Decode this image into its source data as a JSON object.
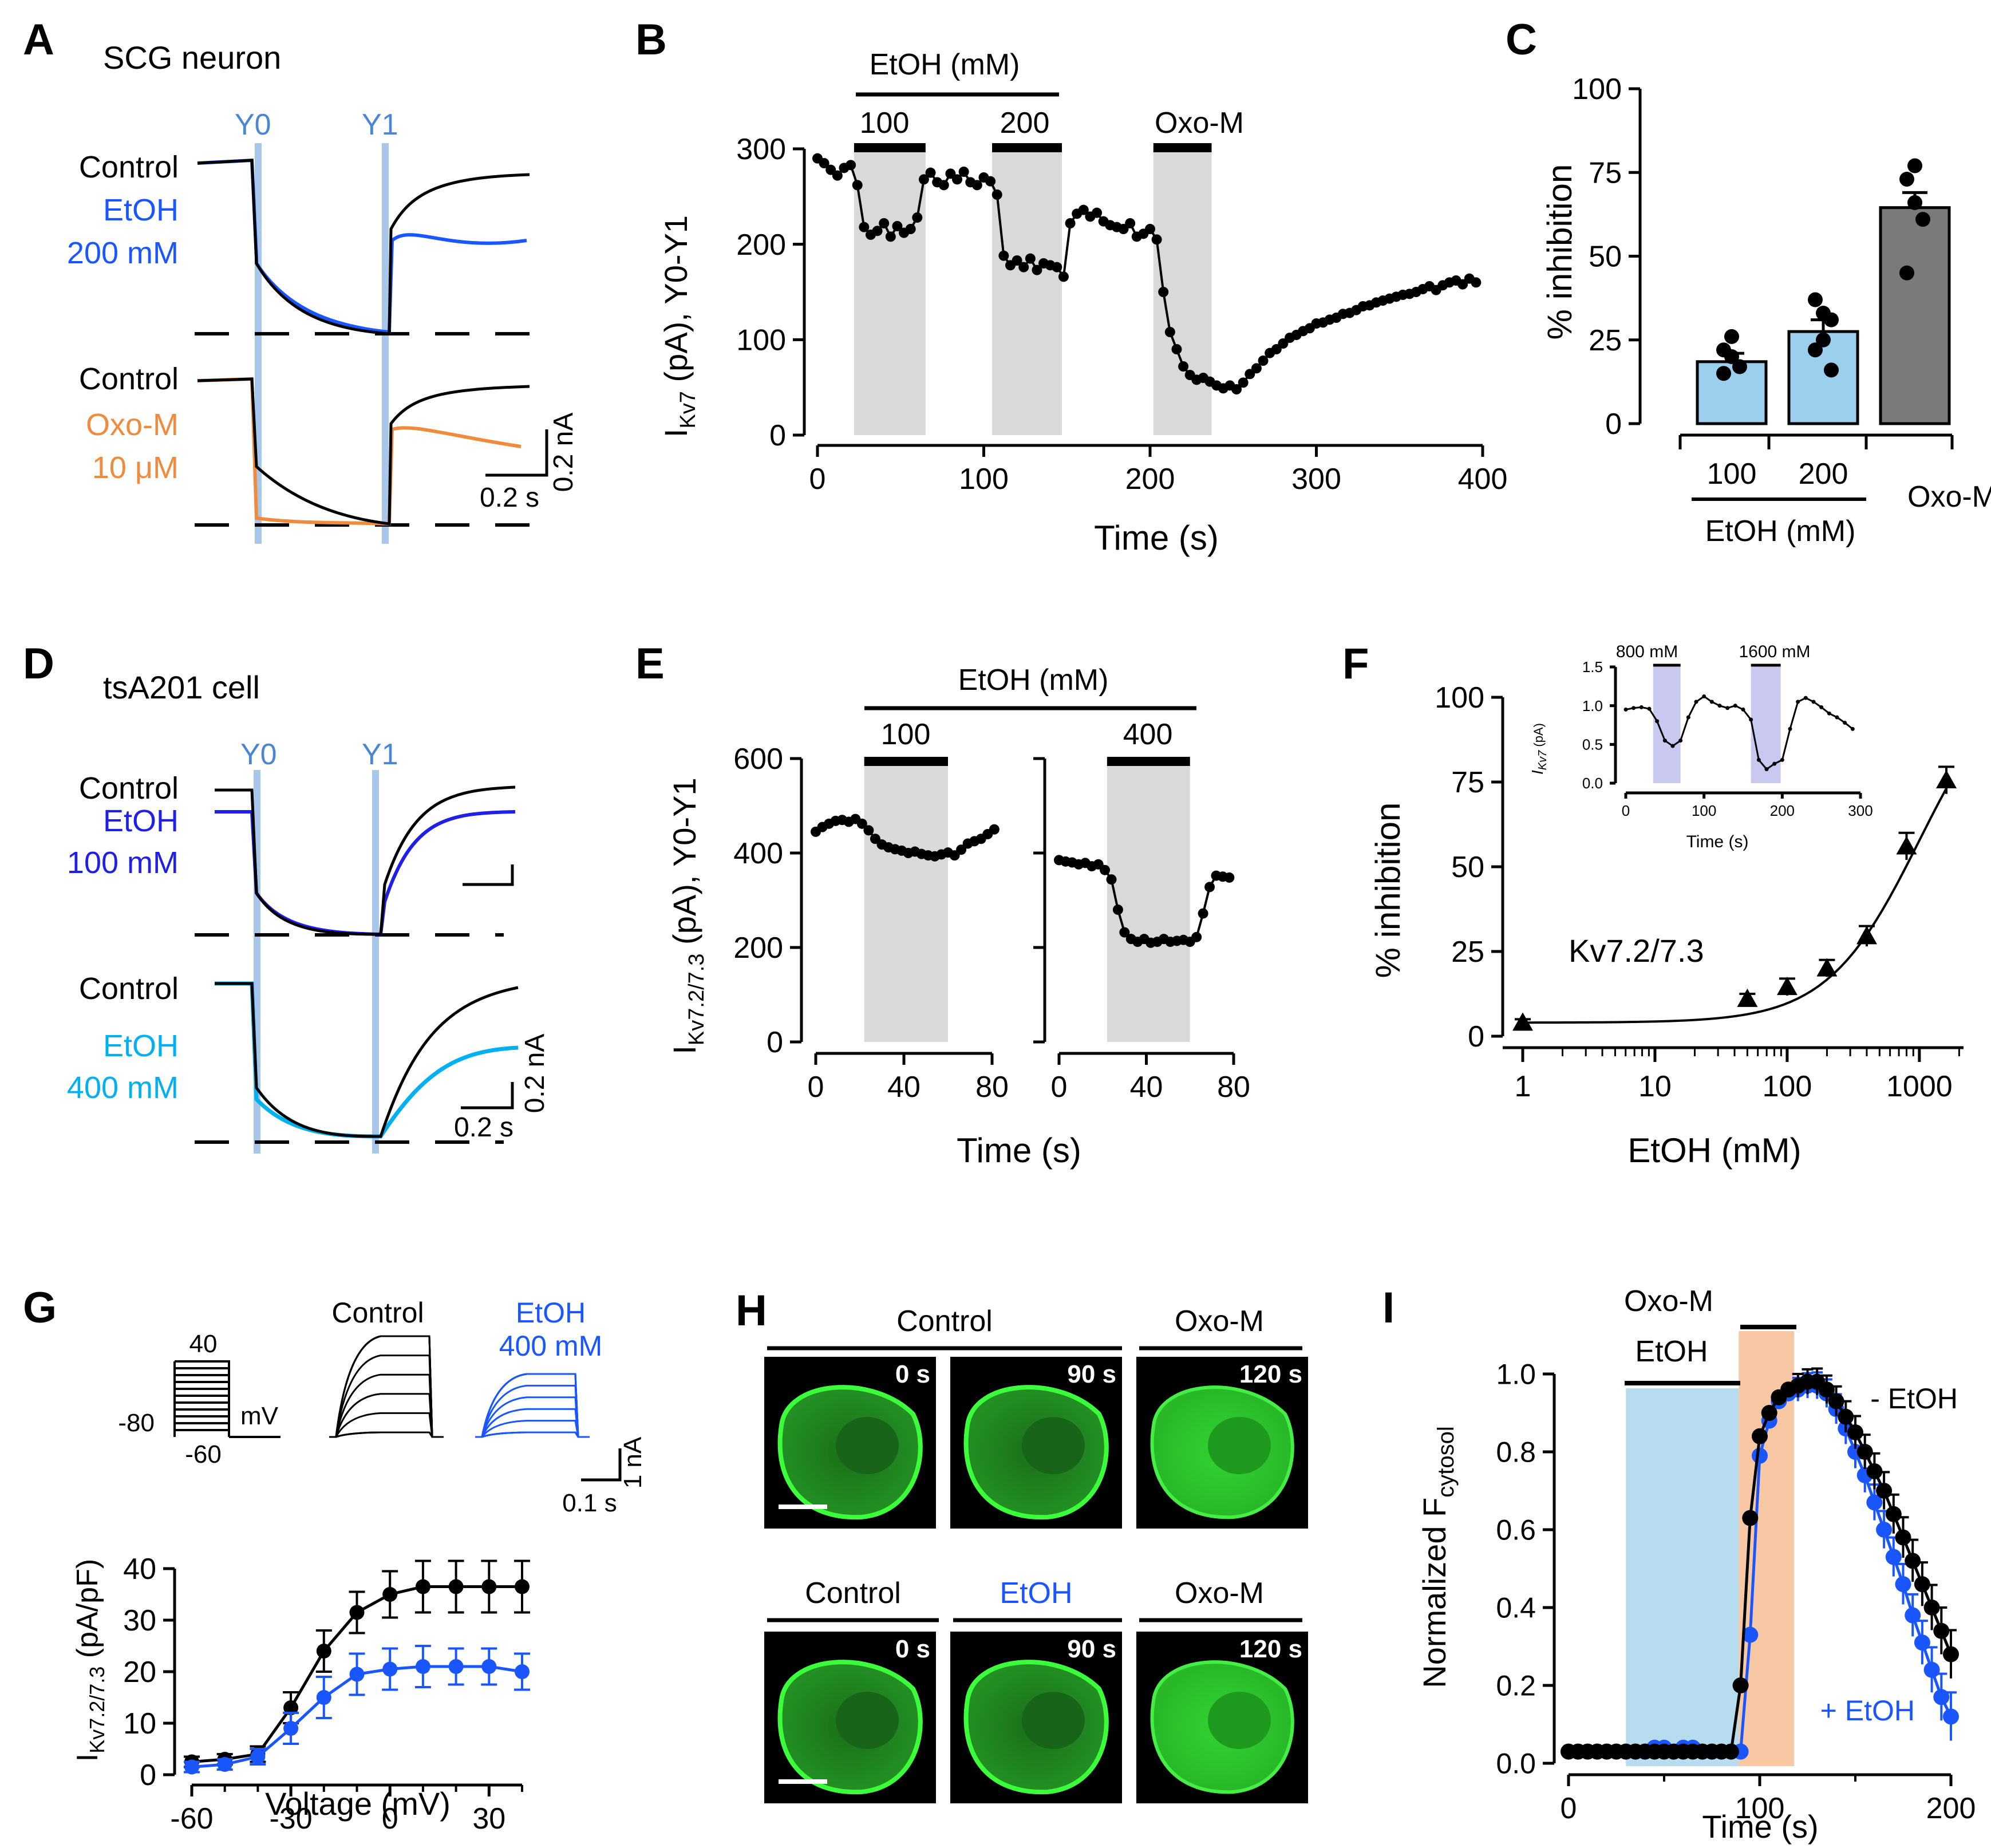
{
  "colors": {
    "black": "#000000",
    "blue": "#1f1fe8",
    "bright_blue": "#1a56ff",
    "light_blue": "#00b0f0",
    "orange": "#f08a3c",
    "cursor_blue": "#a6c6ea",
    "label_blue": "#4a86d4",
    "shade_gray": "#d9d9d9",
    "bar_blue": "#9ccfee",
    "bar_gray": "#7a7a7a",
    "etoh_shade": "#b7dcf0",
    "oxo_shade": "#f8c8a4",
    "inset_shade": "#c8c8f0",
    "cell_green": "#22d022"
  },
  "panelA": {
    "letter": "A",
    "title": "SCG neuron",
    "y0": "Y0",
    "y1": "Y1",
    "top_labels": [
      "Control",
      "EtOH",
      "200 mM"
    ],
    "bottom_labels": [
      "Control",
      "Oxo-M",
      "10 μM"
    ],
    "scale_y": "0.2 nA",
    "scale_x": "0.2 s"
  },
  "panelB": {
    "letter": "B",
    "drug_header": "EtOH  (mM)",
    "applications": [
      "100",
      "200",
      "Oxo-M"
    ],
    "ylabel_main": "I",
    "ylabel_sub": "Kv7",
    "ylabel_tail": " (pA),  Y0-Y1",
    "xlabel": "Time (s)",
    "xticks": [
      "0",
      "100",
      "200",
      "300",
      "400"
    ],
    "yticks": [
      "0",
      "100",
      "200",
      "300"
    ]
  },
  "panelC": {
    "letter": "C",
    "ylabel": "% inhibition",
    "yticks": [
      "0",
      "25",
      "50",
      "75",
      "100"
    ],
    "categories": [
      "100",
      "200",
      "Oxo-M"
    ],
    "group_label": "EtOH  (mM)"
  },
  "panelD": {
    "letter": "D",
    "title": "tsA201 cell",
    "y0": "Y0",
    "y1": "Y1",
    "top_labels": [
      "Control",
      "EtOH",
      "100 mM"
    ],
    "bottom_labels": [
      "Control",
      "EtOH",
      "400 mM"
    ],
    "scale_y": "0.2 nA",
    "scale_x": "0.2 s"
  },
  "panelE": {
    "letter": "E",
    "drug_header": "EtOH  (mM)",
    "applications": [
      "100",
      "400"
    ],
    "ylabel_main": "I",
    "ylabel_sub": "Kv7.2/7.3",
    "ylabel_tail": " (pA),  Y0-Y1",
    "xlabel": "Time (s)",
    "xticks": [
      "0",
      "40",
      "80"
    ],
    "yticks": [
      "0",
      "200",
      "400",
      "600"
    ]
  },
  "panelF": {
    "letter": "F",
    "ylabel": "% inhibition",
    "xlabel": "EtOH (mM)",
    "annotation": "Kv7.2/7.3",
    "xticks": [
      "1",
      "10",
      "100",
      "1000"
    ],
    "yticks": [
      "0",
      "25",
      "50",
      "75",
      "100"
    ],
    "inset": {
      "labels": [
        "800  mM",
        "1600  mM"
      ],
      "ylabel_main": "I",
      "ylabel_sub": "Kv7",
      "ylabel_tail": " (pA)",
      "xlabel": "Time (s)",
      "xticks": [
        "0",
        "100",
        "200",
        "300"
      ],
      "yticks": [
        "0.0",
        "0.5",
        "1.0",
        "1.5"
      ]
    }
  },
  "panelG": {
    "letter": "G",
    "protocol": [
      "40",
      "-80",
      "-60",
      "mV"
    ],
    "trace_labels": [
      "Control",
      "EtOH",
      "400 mM"
    ],
    "scale_y": "1 nA",
    "scale_x": "0.1 s",
    "ylabel_main": "I",
    "ylabel_sub": "Kv7.2/7.3",
    "ylabel_tail": " (pA/pF)",
    "xlabel": "Voltage  (mV)",
    "xticks": [
      "-60",
      "-30",
      "0",
      "30"
    ],
    "yticks": [
      "0",
      "10",
      "20",
      "30",
      "40"
    ]
  },
  "panelH": {
    "letter": "H",
    "row1_headers": [
      "Control",
      "Oxo-M"
    ],
    "row2_headers": [
      "Control",
      "EtOH",
      "Oxo-M"
    ],
    "timestamps": [
      "0 s",
      "90 s",
      "120 s"
    ]
  },
  "panelI": {
    "letter": "I",
    "shade_labels": [
      "EtOH",
      "Oxo-M"
    ],
    "ylabel_main": "Normalized    F",
    "ylabel_sub": "cytosol",
    "xlabel": "Time  (s)",
    "xticks": [
      "0",
      "100",
      "200"
    ],
    "yticks": [
      "0.0",
      "0.2",
      "0.4",
      "0.6",
      "0.8",
      "1.0"
    ],
    "series_labels": [
      "- EtOH",
      "+ EtOH"
    ]
  },
  "chart_data": [
    {
      "panel": "B",
      "type": "scatter",
      "title": "",
      "xlabel": "Time (s)",
      "ylabel": "IKv7 (pA), Y0-Y1",
      "xlim": [
        0,
        400
      ],
      "ylim": [
        0,
        300
      ],
      "shaded_intervals": [
        [
          22,
          65
        ],
        [
          105,
          147
        ],
        [
          202,
          237
        ]
      ],
      "x": [
        0,
        4,
        8,
        12,
        16,
        20,
        24,
        28,
        32,
        36,
        40,
        44,
        48,
        52,
        56,
        60,
        64,
        68,
        72,
        76,
        80,
        84,
        88,
        92,
        96,
        100,
        104,
        108,
        112,
        116,
        120,
        124,
        128,
        132,
        136,
        140,
        144,
        148,
        152,
        156,
        160,
        164,
        168,
        172,
        176,
        180,
        184,
        188,
        192,
        196,
        200,
        204,
        208,
        212,
        216,
        220,
        224,
        228,
        232,
        236,
        240,
        244,
        248,
        252,
        256,
        260,
        264,
        268,
        272,
        276,
        280,
        284,
        288,
        292,
        296,
        300,
        304,
        308,
        312,
        316,
        320,
        324,
        328,
        332,
        336,
        340,
        344,
        348,
        352,
        356,
        360,
        364,
        368,
        372,
        376,
        380,
        384,
        388,
        392,
        396
      ],
      "y": [
        290,
        285,
        278,
        272,
        280,
        283,
        262,
        218,
        210,
        214,
        222,
        208,
        219,
        212,
        216,
        228,
        268,
        275,
        265,
        262,
        274,
        268,
        276,
        265,
        262,
        270,
        266,
        252,
        188,
        178,
        183,
        176,
        185,
        173,
        180,
        178,
        176,
        166,
        222,
        232,
        236,
        229,
        233,
        224,
        220,
        218,
        216,
        222,
        208,
        211,
        216,
        205,
        150,
        108,
        90,
        72,
        63,
        58,
        60,
        56,
        52,
        49,
        52,
        48,
        55,
        64,
        70,
        78,
        86,
        90,
        96,
        102,
        105,
        109,
        112,
        117,
        118,
        121,
        123,
        127,
        128,
        131,
        135,
        136,
        139,
        141,
        143,
        145,
        147,
        148,
        150,
        153,
        156,
        152,
        157,
        160,
        162,
        158,
        164,
        160
      ]
    },
    {
      "panel": "C",
      "type": "bar",
      "ylabel": "% inhibition",
      "ylim": [
        0,
        100
      ],
      "categories": [
        "100",
        "200",
        "Oxo-M"
      ],
      "values": [
        18.5,
        27.5,
        64.5
      ],
      "errors": [
        2.5,
        3.5,
        4.5
      ],
      "points": [
        [
          22,
          20,
          17,
          15,
          26
        ],
        [
          22,
          25,
          31,
          37,
          33,
          16
        ],
        [
          73,
          77,
          61,
          45,
          66
        ]
      ],
      "xlabel": "EtOH  (mM)"
    },
    {
      "panel": "E",
      "type": "scatter",
      "ylabel": "IKv7.2/7.3 (pA), Y0-Y1",
      "xlabel": "Time (s)",
      "ylim": [
        0,
        600
      ],
      "series": [
        {
          "name": "100 mM",
          "shade": [
            22,
            60
          ],
          "x": [
            0,
            3,
            6,
            9,
            12,
            15,
            18,
            21,
            24,
            27,
            30,
            33,
            36,
            39,
            42,
            45,
            48,
            51,
            54,
            57,
            60,
            63,
            66,
            69,
            72,
            75,
            78,
            81
          ],
          "y": [
            445,
            455,
            462,
            468,
            470,
            466,
            472,
            462,
            448,
            430,
            418,
            412,
            408,
            405,
            400,
            403,
            398,
            395,
            393,
            397,
            401,
            395,
            407,
            420,
            425,
            430,
            440,
            450
          ]
        },
        {
          "name": "400 mM",
          "shade": [
            22,
            60
          ],
          "x": [
            0,
            3,
            6,
            9,
            12,
            15,
            18,
            21,
            24,
            27,
            30,
            33,
            36,
            39,
            42,
            45,
            48,
            51,
            54,
            57,
            60,
            63,
            66,
            69,
            72,
            75,
            78
          ],
          "y": [
            385,
            382,
            380,
            376,
            379,
            372,
            376,
            364,
            344,
            280,
            232,
            218,
            212,
            218,
            210,
            212,
            218,
            212,
            214,
            216,
            212,
            222,
            272,
            328,
            352,
            350,
            348
          ]
        }
      ]
    },
    {
      "panel": "F",
      "type": "scatter",
      "xscale": "log",
      "xlabel": "EtOH (mM)",
      "ylabel": "% inhibition",
      "xlim": [
        1,
        1600
      ],
      "ylim": [
        0,
        100
      ],
      "x": [
        1,
        50,
        100,
        200,
        400,
        800,
        1600
      ],
      "y": [
        4,
        11,
        14.5,
        20,
        29.5,
        56,
        75.5
      ],
      "errors": [
        1,
        1.5,
        2.5,
        2.5,
        3,
        4,
        4
      ],
      "inset": {
        "xlim": [
          0,
          300
        ],
        "ylim": [
          0,
          1.5
        ],
        "x": [
          0,
          10,
          20,
          30,
          40,
          50,
          60,
          70,
          80,
          90,
          100,
          110,
          120,
          130,
          140,
          150,
          160,
          170,
          180,
          190,
          200,
          210,
          220,
          230,
          240,
          250,
          260,
          270,
          280,
          290
        ],
        "y": [
          0.95,
          0.97,
          0.98,
          0.96,
          0.8,
          0.55,
          0.48,
          0.55,
          0.85,
          1.05,
          1.12,
          1.05,
          1.0,
          0.97,
          1.0,
          0.95,
          0.82,
          0.3,
          0.18,
          0.25,
          0.3,
          0.7,
          1.05,
          1.1,
          1.05,
          0.98,
          0.9,
          0.85,
          0.78,
          0.7
        ]
      }
    },
    {
      "panel": "G",
      "type": "line",
      "xlabel": "Voltage  (mV)",
      "ylabel": "IKv7.2/7.3 (pA/pF)",
      "xlim": [
        -60,
        40
      ],
      "ylim": [
        0,
        40
      ],
      "x": [
        -60,
        -50,
        -40,
        -30,
        -20,
        -10,
        0,
        10,
        20,
        30,
        40
      ],
      "series": [
        {
          "name": "Control",
          "values": [
            2.5,
            3,
            4,
            13,
            24,
            31.5,
            35,
            36.5,
            36.5,
            36.5,
            36.5
          ],
          "errors": [
            1,
            1,
            1.5,
            3,
            4,
            4,
            4.5,
            5,
            5,
            5,
            5
          ]
        },
        {
          "name": "EtOH 400 mM",
          "values": [
            1.5,
            2,
            3.5,
            9,
            15,
            19.5,
            20.5,
            21,
            21,
            21,
            20
          ],
          "errors": [
            1,
            1,
            1.5,
            3,
            4,
            4,
            4,
            4,
            3.5,
            3.5,
            3.5
          ]
        }
      ]
    },
    {
      "panel": "I",
      "type": "scatter",
      "xlabel": "Time  (s)",
      "ylabel": "Normalized Fcytosol",
      "xlim": [
        0,
        200
      ],
      "ylim": [
        0,
        1
      ],
      "shaded_intervals": [
        [
          30,
          89
        ],
        [
          89,
          118
        ]
      ],
      "x": [
        0,
        5,
        10,
        15,
        20,
        25,
        30,
        35,
        40,
        45,
        50,
        55,
        60,
        65,
        70,
        75,
        80,
        85,
        90,
        95,
        100,
        105,
        110,
        115,
        120,
        125,
        130,
        135,
        140,
        145,
        150,
        155,
        160,
        165,
        170,
        175,
        180,
        185,
        190,
        195,
        200
      ],
      "series": [
        {
          "name": "- EtOH",
          "values": [
            0.03,
            0.03,
            0.03,
            0.03,
            0.03,
            0.03,
            0.03,
            0.03,
            0.03,
            0.03,
            0.03,
            0.03,
            0.03,
            0.03,
            0.03,
            0.03,
            0.03,
            0.03,
            0.2,
            0.63,
            0.84,
            0.9,
            0.94,
            0.96,
            0.97,
            0.98,
            0.98,
            0.96,
            0.93,
            0.89,
            0.85,
            0.8,
            0.75,
            0.7,
            0.64,
            0.58,
            0.52,
            0.46,
            0.4,
            0.34,
            0.28
          ]
        },
        {
          "name": "+ EtOH",
          "values": [
            0.03,
            0.03,
            0.03,
            0.03,
            0.03,
            0.03,
            0.03,
            0.03,
            0.03,
            0.04,
            0.04,
            0.03,
            0.04,
            0.04,
            0.03,
            0.03,
            0.03,
            0.03,
            0.03,
            0.33,
            0.79,
            0.88,
            0.93,
            0.95,
            0.96,
            0.97,
            0.97,
            0.95,
            0.91,
            0.86,
            0.8,
            0.74,
            0.67,
            0.6,
            0.53,
            0.46,
            0.38,
            0.31,
            0.24,
            0.17,
            0.12
          ]
        }
      ]
    }
  ]
}
